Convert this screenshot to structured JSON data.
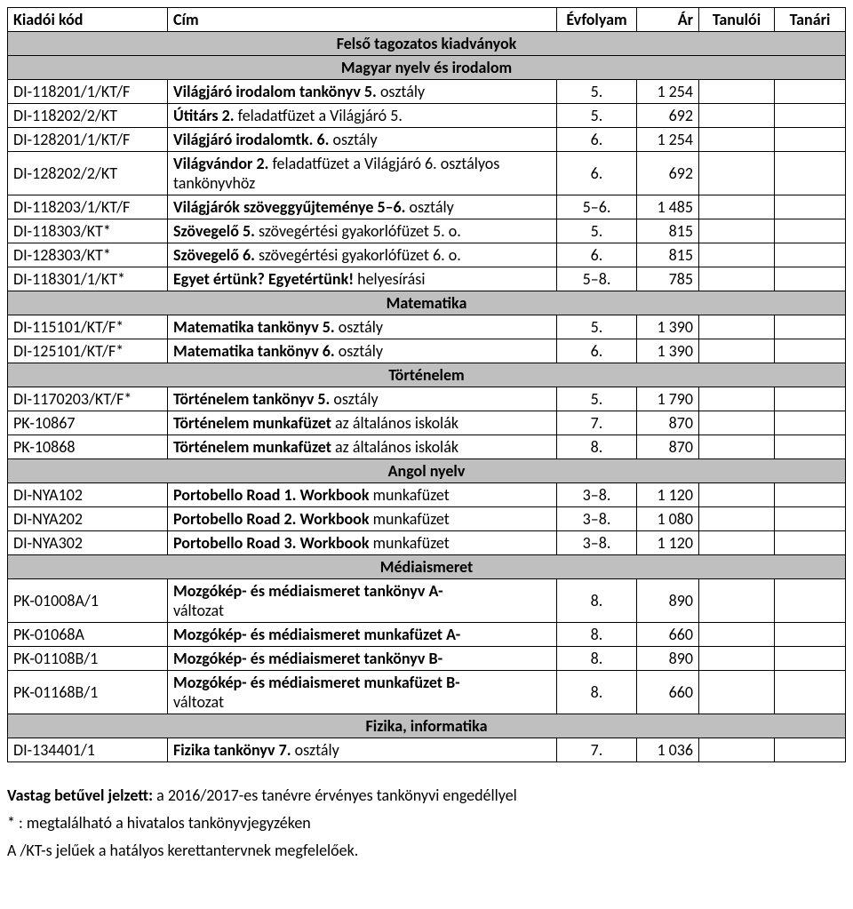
{
  "headers": {
    "code": "Kiadói kód",
    "title": "Cím",
    "grade": "Évfolyam",
    "price": "Ár",
    "student": "Tanulói",
    "teacher": "Tanári"
  },
  "sections": [
    {
      "name": "Felső tagozatos kiadványok",
      "sub": "Magyar nyelv és irodalom",
      "rows": [
        {
          "code": "DI-118201/1/KT/F",
          "title_bold": "Világjáró irodalom tankönyv 5.",
          "title_rest": " osztály",
          "grade": "5.",
          "price": "1 254"
        },
        {
          "code": "DI-118202/2/KT",
          "title_bold": "Útitárs 2.",
          "title_rest": " feladatfüzet a Világjáró 5.",
          "grade": "5.",
          "price": "692"
        },
        {
          "code": "DI-128201/1/KT/F",
          "title_bold": "Világjáró irodalomtk. 6.",
          "title_rest": " osztály",
          "grade": "6.",
          "price": "1 254"
        },
        {
          "code": "DI-128202/2/KT",
          "title_bold": "Világvándor 2.",
          "title_rest": " feladatfüzet a Világjáró 6. osztályos tankönyvhöz",
          "grade": "6.",
          "price": "692"
        },
        {
          "code": "DI-118203/1/KT/F",
          "title_bold": "Világjárók szöveggyűjteménye 5–6.",
          "title_rest": " osztály",
          "grade": "5–6.",
          "price": "1 485"
        },
        {
          "code": "DI-118303/KT*",
          "title_bold": "Szövegelő 5.",
          "title_rest": " szövegértési gyakorlófüzet 5. o.",
          "grade": "5.",
          "price": "815"
        },
        {
          "code": "DI-128303/KT*",
          "title_bold": "Szövegelő 6.",
          "title_rest": " szövegértési gyakorlófüzet 6. o.",
          "grade": "6.",
          "price": "815"
        },
        {
          "code": "DI-118301/1/KT*",
          "title_bold": "Egyet értünk? Egyetértünk!",
          "title_rest": " helyesírási",
          "grade": "5–8.",
          "price": "785"
        }
      ]
    },
    {
      "name": "Matematika",
      "rows": [
        {
          "code": "DI-115101/KT/F*",
          "title_bold": "Matematika tankönyv 5.",
          "title_rest": " osztály",
          "grade": "5.",
          "price": "1 390"
        },
        {
          "code": "DI-125101/KT/F*",
          "title_bold": "Matematika tankönyv 6.",
          "title_rest": " osztály",
          "grade": "6.",
          "price": "1 390"
        }
      ]
    },
    {
      "name": "Történelem",
      "rows": [
        {
          "code": "DI-1170203/KT/F*",
          "title_bold": "Történelem tankönyv 5.",
          "title_rest": " osztály",
          "grade": "5.",
          "price": "1 790"
        },
        {
          "code": "PK-10867",
          "title_bold": "Történelem munkafüzet",
          "title_rest": " az általános iskolák",
          "grade": "7.",
          "price": "870"
        },
        {
          "code": "PK-10868",
          "title_bold": "Történelem munkafüzet",
          "title_rest": " az általános iskolák",
          "grade": "8.",
          "price": "870"
        }
      ]
    },
    {
      "name": "Angol nyelv",
      "rows": [
        {
          "code": "DI-NYA102",
          "title_bold": "Portobello Road 1. Workbook",
          "title_rest": " munkafüzet",
          "grade": "3–8.",
          "price": "1 120"
        },
        {
          "code": "DI-NYA202",
          "title_bold": "Portobello Road 2. Workbook",
          "title_rest": " munkafüzet",
          "grade": "3–8.",
          "price": "1 080"
        },
        {
          "code": "DI-NYA302",
          "title_bold": "Portobello Road 3. Workbook",
          "title_rest": " munkafüzet",
          "grade": "3–8.",
          "price": "1 120"
        }
      ]
    },
    {
      "name": "Médiaismeret",
      "rows": [
        {
          "code": "PK-01008A/1",
          "title_bold": "Mozgókép- és médiaismeret tankönyv A-",
          "title_rest": "változat",
          "grade": "8.",
          "price": "890",
          "multiline": true
        },
        {
          "code": "PK-01068A",
          "title_bold": "Mozgókép- és médiaismeret munkafüzet A-",
          "title_rest": "",
          "grade": "8.",
          "price": "660"
        },
        {
          "code": "PK-01108B/1",
          "title_bold": "Mozgókép- és médiaismeret tankönyv B-",
          "title_rest": "",
          "grade": "8.",
          "price": "890"
        },
        {
          "code": "PK-01168B/1",
          "title_bold": "Mozgókép- és médiaismeret munkafüzet B-",
          "title_rest": "változat",
          "grade": "8.",
          "price": "660",
          "multiline": true
        }
      ]
    },
    {
      "name": "Fizika, informatika",
      "rows": [
        {
          "code": "DI-134401/1",
          "title_bold": "Fizika tankönyv 7.",
          "title_rest": " osztály",
          "grade": "7.",
          "price": "1 036"
        }
      ]
    }
  ],
  "notes": {
    "line1_bold": "Vastag betűvel jelzett:",
    "line1_rest": " a 2016/2017-es tanévre érvényes tankönyvi engedéllyel",
    "line2": "* : megtalálható a hivatalos tankönyvjegyzéken",
    "line3": "A /KT-s jelűek a hatályos kerettantervnek megfelelőek."
  }
}
